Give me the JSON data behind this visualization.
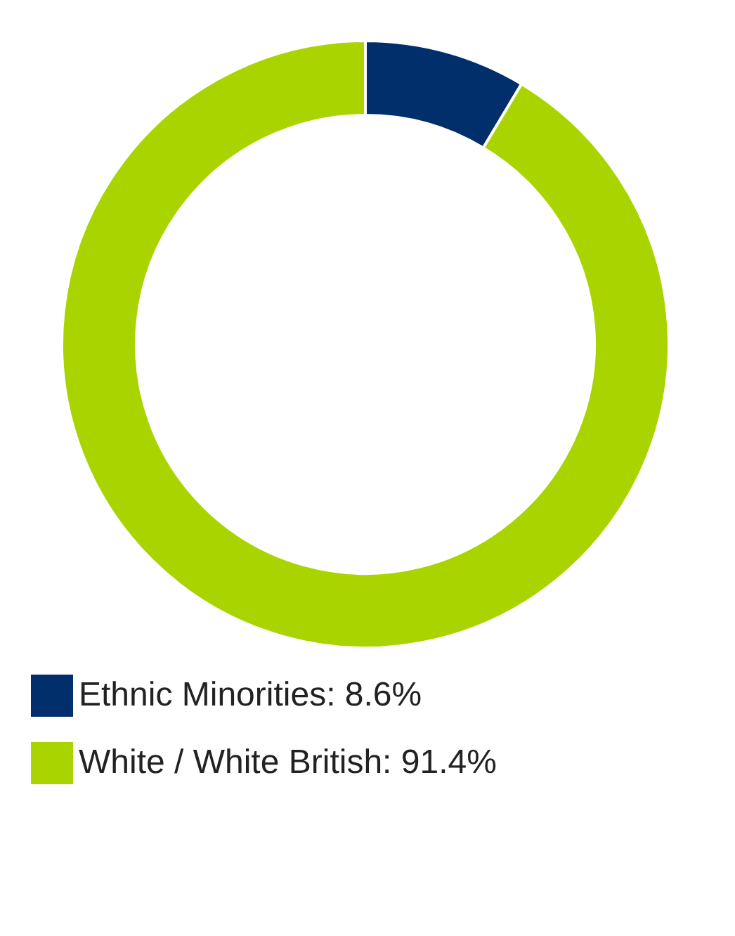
{
  "chart_data": {
    "type": "donut",
    "categories": [
      "Ethnic Minorities: 8.6%",
      "White / White British: 91.4%"
    ],
    "values": [
      8.6,
      91.4
    ],
    "colors": [
      "#002f6c",
      "#aad400"
    ],
    "legend": "bottom left"
  }
}
